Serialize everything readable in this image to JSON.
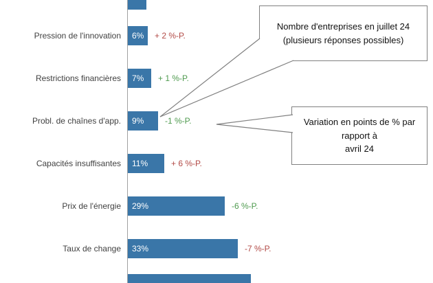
{
  "chart_data": {
    "type": "bar",
    "orientation": "horizontal",
    "unit": "%",
    "categories": [
      "Pression de l'innovation",
      "Restrictions financières",
      "Probl. de chaînes d'app.",
      "Capacités insuffisantes",
      "Prix de l'énergie",
      "Taux de change"
    ],
    "values": [
      6,
      7,
      9,
      11,
      29,
      33
    ],
    "value_labels": [
      "6%",
      "7%",
      "9%",
      "11%",
      "29%",
      "33%"
    ],
    "changes": [
      {
        "label": "+ 2 %-P.",
        "color": "#B24A46"
      },
      {
        "label": "+ 1 %-P.",
        "color": "#4E9A4E"
      },
      {
        "label": "-1 %-P.",
        "color": "#4E9A4E"
      },
      {
        "label": "+ 6 %-P.",
        "color": "#B24A46"
      },
      {
        "label": "-6 %-P.",
        "color": "#4E9A4E"
      },
      {
        "label": "-7 %-P.",
        "color": "#B24A46"
      }
    ],
    "partial_bars": {
      "top_width_pct": 5.5,
      "bottom_width_pct": 37
    },
    "bar_color": "#3A76A8",
    "axis_color": "#A0A0A0",
    "positive_color": "#B24A46",
    "negative_color": "#4E9A4E",
    "annotations": [
      {
        "text": "Nombre d'entreprises en juillet 24\n(plusieurs réponses possibles)"
      },
      {
        "text": "Variation en points de % par\nrapport à\navril 24"
      }
    ],
    "legend_position": "none",
    "grid": false
  }
}
